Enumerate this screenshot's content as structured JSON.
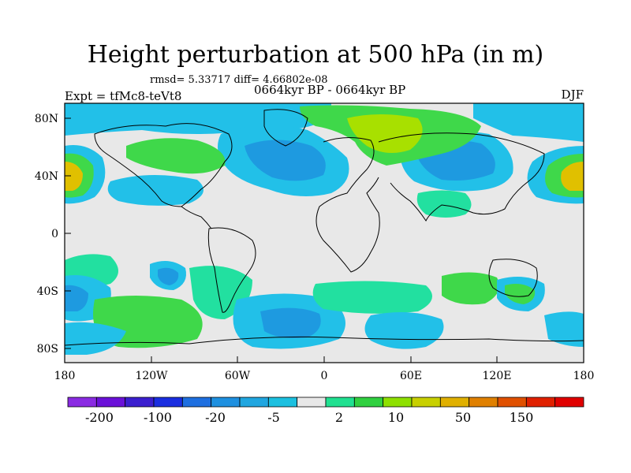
{
  "title": "Height perturbation at 500 hPa (in m)",
  "stats": "rmsd= 5.33717 diff= 4.66802e-08",
  "experiment": "Expt = tfMc8-teVt8",
  "period": "0664kyr BP - 0664kyr BP",
  "season": "DJF",
  "lat_ticks": [
    "80N",
    "40N",
    "0",
    "40S",
    "80S"
  ],
  "lon_ticks": [
    "180",
    "120W",
    "60W",
    "0",
    "60E",
    "120E",
    "180"
  ],
  "colorbar": {
    "labels": [
      "-200",
      "-100",
      "-20",
      "-5",
      "2",
      "10",
      "50",
      "150"
    ],
    "colors": [
      "#8a2be2",
      "#6a11d8",
      "#3b1fcf",
      "#1a2ee0",
      "#1e6fe0",
      "#1e90e0",
      "#20a6e0",
      "#1cc0e0",
      "#e8e8e8",
      "#20e090",
      "#30d040",
      "#8ee000",
      "#c8d000",
      "#e0b000",
      "#e08000",
      "#e05000",
      "#e02000",
      "#e00000"
    ]
  },
  "palette": {
    "neutral": "#e8e8e8",
    "light_blue": "#22c0e8",
    "mid_blue": "#1e9ae0",
    "deep_blue": "#1f78d8",
    "green_cyan": "#22e0a0",
    "green": "#3fd84a",
    "yellow_green": "#a8e000",
    "yellow": "#e0c000"
  }
}
